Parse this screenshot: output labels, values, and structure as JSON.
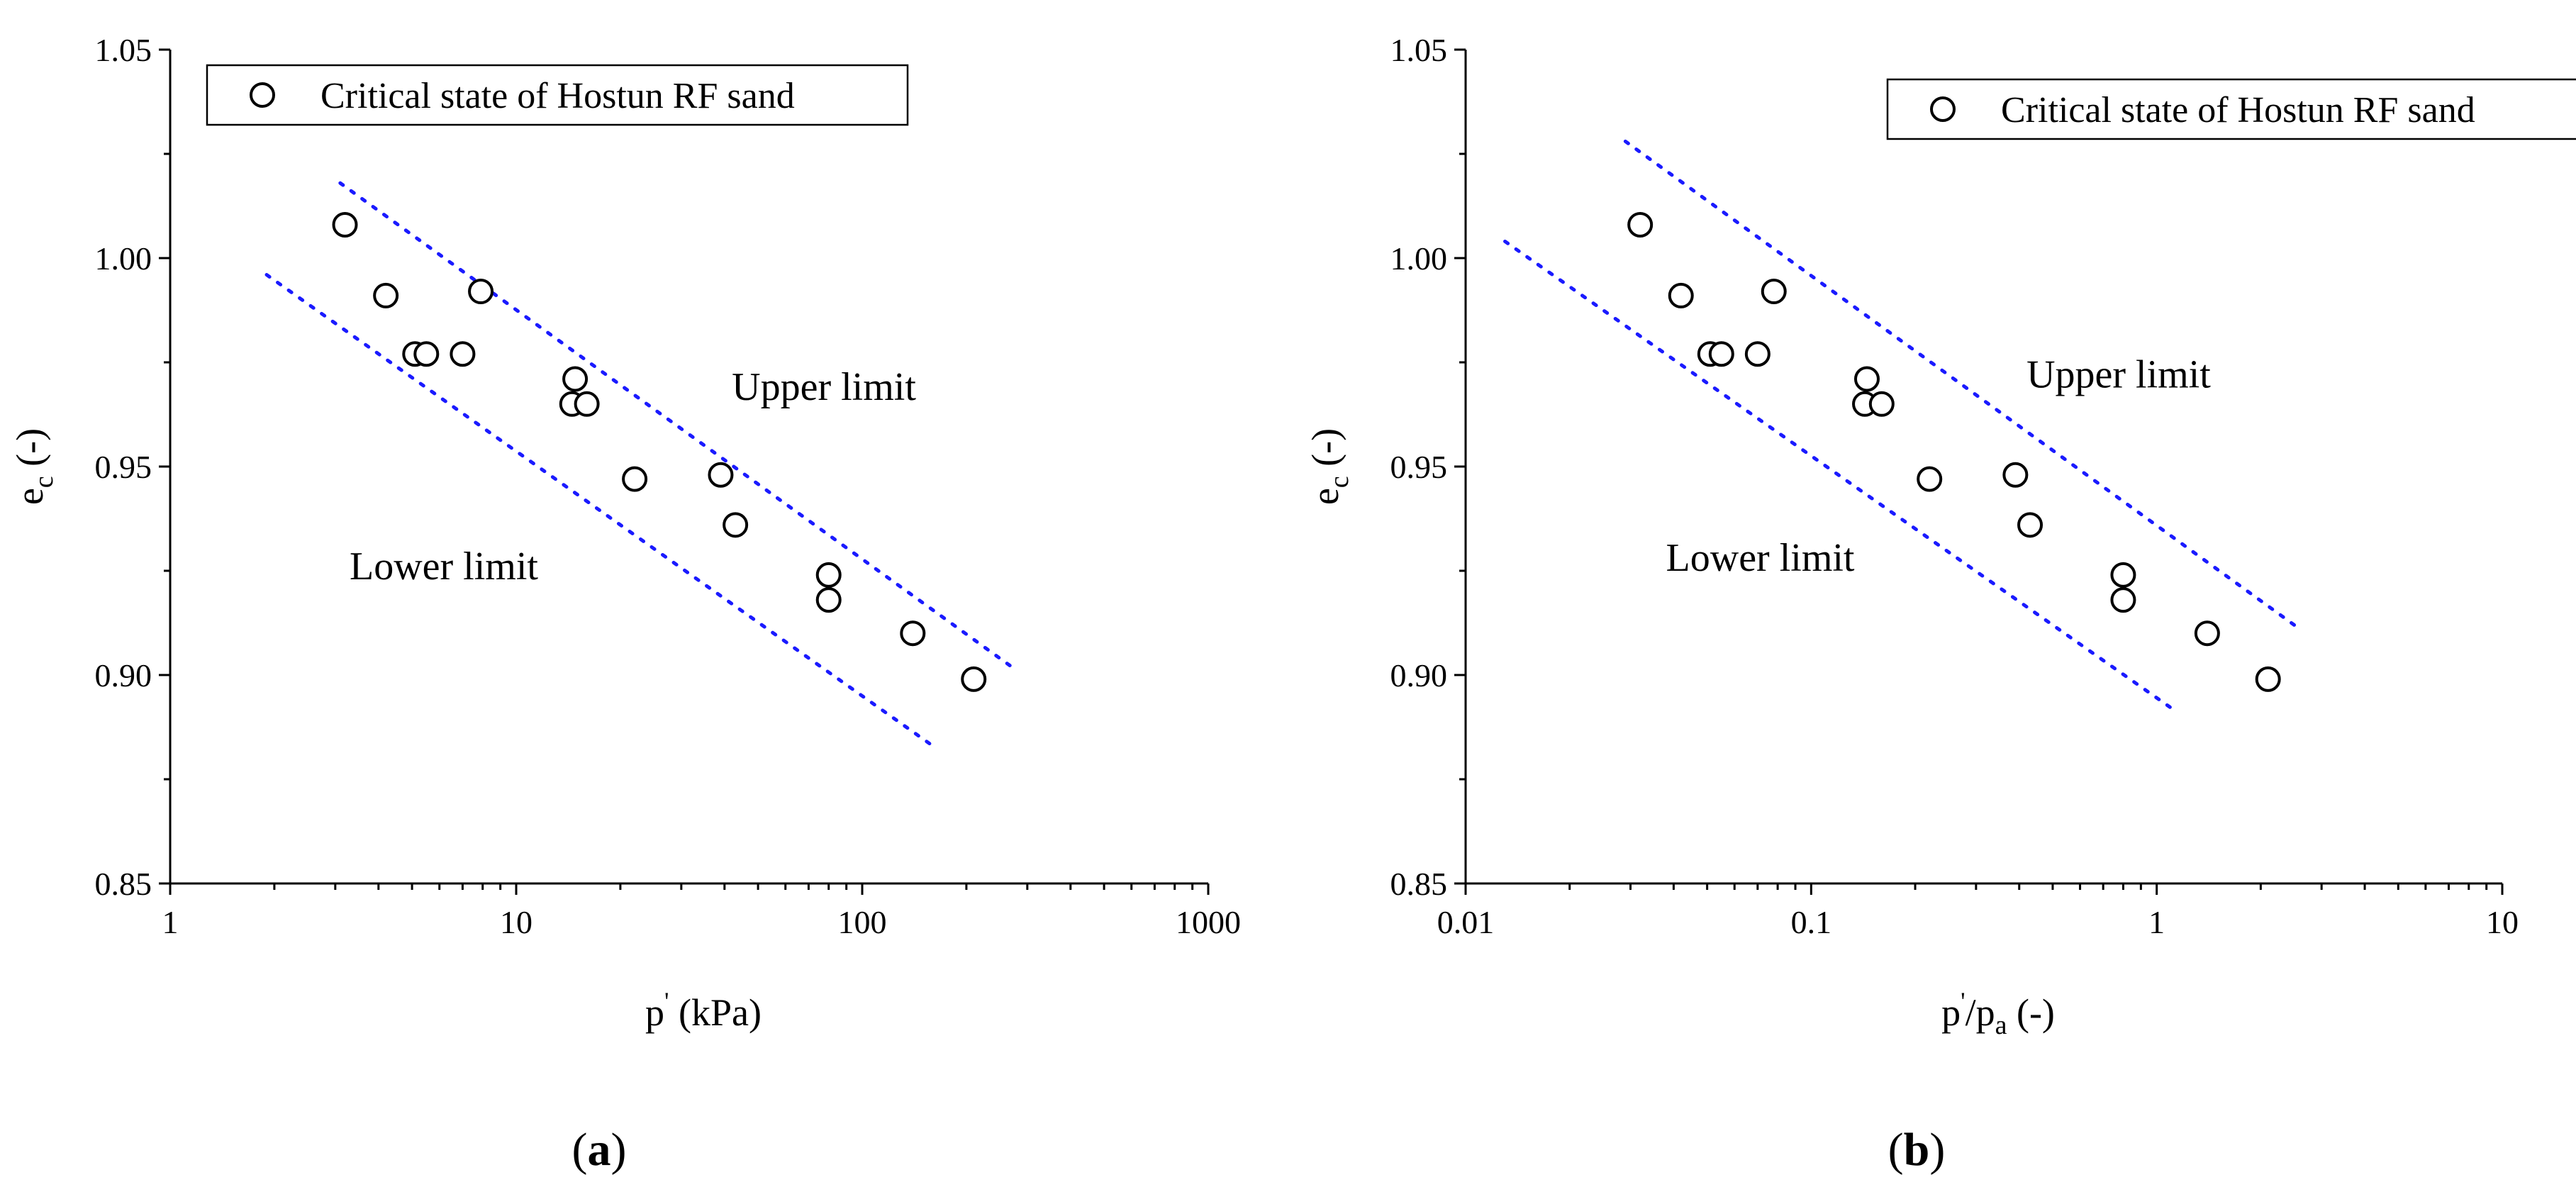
{
  "chart_data": [
    {
      "type": "scatter",
      "xscale": "log",
      "xlim": [
        1,
        1000
      ],
      "ylim": [
        0.85,
        1.05
      ],
      "xticks": [
        1,
        10,
        100,
        1000
      ],
      "xtick_labels": [
        "1",
        "10",
        "100",
        "1000"
      ],
      "yticks": [
        0.85,
        0.9,
        0.95,
        1.0,
        1.05
      ],
      "ytick_labels": [
        "0.85",
        "0.90",
        "0.95",
        "1.00",
        "1.05"
      ],
      "xlabel": {
        "main": "p",
        "sup": "'",
        "rest": " (kPa)"
      },
      "ylabel": {
        "main": "e",
        "sub": "c",
        "rest": " (-)"
      },
      "legend_label": "Critical state of Hostun RF sand",
      "legend_position": "top-left",
      "series": [
        {
          "name": "Critical state of Hostun RF sand",
          "x": [
            3.2,
            4.2,
            5.1,
            5.5,
            7.0,
            7.9,
            14.5,
            14.8,
            16.0,
            22.0,
            39.0,
            43.0,
            80.0,
            80.0,
            140.0,
            210.0
          ],
          "y": [
            1.008,
            0.991,
            0.977,
            0.977,
            0.977,
            0.992,
            0.965,
            0.971,
            0.965,
            0.947,
            0.948,
            0.936,
            0.924,
            0.918,
            0.91,
            0.899
          ]
        }
      ],
      "limits": [
        {
          "name": "Upper limit",
          "x": [
            3.1,
            270
          ],
          "y": [
            1.018,
            0.902
          ]
        },
        {
          "name": "Lower limit",
          "x": [
            1.9,
            160
          ],
          "y": [
            0.996,
            0.883
          ]
        }
      ],
      "annotations": [
        {
          "text": "Upper limit",
          "x": 42,
          "y": 0.966
        },
        {
          "text": "Lower limit",
          "x": 3.3,
          "y": 0.923
        }
      ],
      "caption": "a"
    },
    {
      "type": "scatter",
      "xscale": "log",
      "xlim": [
        0.01,
        10
      ],
      "ylim": [
        0.85,
        1.05
      ],
      "xticks": [
        0.01,
        0.1,
        1,
        10
      ],
      "xtick_labels": [
        "0.01",
        "0.1",
        "1",
        "10"
      ],
      "yticks": [
        0.85,
        0.9,
        0.95,
        1.0,
        1.05
      ],
      "ytick_labels": [
        "0.85",
        "0.90",
        "0.95",
        "1.00",
        "1.05"
      ],
      "xlabel": {
        "main": "p",
        "sup": "'",
        "mid": "/p",
        "sub": "a",
        "rest": " (-)"
      },
      "ylabel": {
        "main": "e",
        "sub": "c",
        "rest": " (-)"
      },
      "legend_label": "Critical state of Hostun RF sand",
      "legend_position": "top-right",
      "series": [
        {
          "name": "Critical state of Hostun RF sand",
          "x": [
            0.032,
            0.042,
            0.051,
            0.055,
            0.07,
            0.078,
            0.143,
            0.145,
            0.16,
            0.22,
            0.39,
            0.43,
            0.8,
            0.8,
            1.4,
            2.1
          ],
          "y": [
            1.008,
            0.991,
            0.977,
            0.977,
            0.977,
            0.992,
            0.965,
            0.971,
            0.965,
            0.947,
            0.948,
            0.936,
            0.924,
            0.918,
            0.91,
            0.899
          ]
        }
      ],
      "limits": [
        {
          "name": "Upper limit",
          "x": [
            0.029,
            2.5
          ],
          "y": [
            1.028,
            0.912
          ]
        },
        {
          "name": "Lower limit",
          "x": [
            0.013,
            1.15
          ],
          "y": [
            1.004,
            0.891
          ]
        }
      ],
      "annotations": [
        {
          "text": "Upper limit",
          "x": 0.42,
          "y": 0.969
        },
        {
          "text": "Lower limit",
          "x": 0.038,
          "y": 0.925
        }
      ],
      "caption": "b"
    }
  ]
}
